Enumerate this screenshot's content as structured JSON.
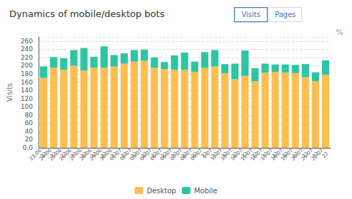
{
  "chart_data": {
    "type": "bar",
    "title": "Dynamics of mobile/desktop bots",
    "ylabel": "Visits",
    "stacked": true,
    "grid": true,
    "legend": "bottom",
    "annotations": [
      "Visits",
      "Pages",
      "%"
    ],
    "categories": [
      "23.06.\n22",
      "24.06.\n22",
      "25.06.\n22",
      "26.06.\n22",
      "27.06.\n22",
      "28.06.\n22",
      "29.06.\n22",
      "30.06.\n22",
      "01.07.\n22",
      "02.07.\n22",
      "03.07.\n22",
      "04.07.\n22",
      "05.07.\n22",
      "06.07.\n22",
      "07.07.\n22",
      "08.07.\n22",
      "09.07.\n22",
      "1.07.\n22",
      "12.07.\n22",
      "13.07.\n22",
      "14.07.\n22",
      "15.07.\n22",
      "16.07.\n22",
      "17.07.\n22",
      "18.07.\n22",
      "19.07.\n22",
      "20.07.\n22",
      "21.07.\n22",
      "22.07.\n22"
    ],
    "series": [
      {
        "name": "Desktop",
        "color": "#FFBE4F",
        "values": [
          170,
          195,
          190,
          200,
          188,
          195,
          195,
          198,
          205,
          210,
          212,
          195,
          192,
          190,
          190,
          185,
          195,
          198,
          182,
          167,
          175,
          162,
          183,
          185,
          183,
          182,
          172,
          162,
          178
        ]
      },
      {
        "name": "Mobile",
        "color": "#2DC5A2",
        "values": [
          28,
          26,
          28,
          38,
          55,
          27,
          52,
          28,
          25,
          28,
          27,
          25,
          17,
          35,
          42,
          25,
          38,
          40,
          22,
          38,
          62,
          32,
          22,
          18,
          20,
          20,
          32,
          22,
          35
        ]
      }
    ],
    "ylim": [
      0,
      270
    ],
    "yticks": [
      {
        "value": 0,
        "label": "0,0"
      },
      20,
      40,
      60,
      80,
      100,
      120,
      140,
      160,
      180,
      200,
      220,
      240,
      260
    ]
  }
}
